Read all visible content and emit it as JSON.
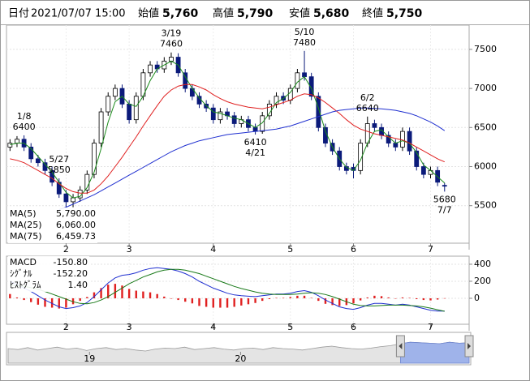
{
  "header": {
    "date_label": "日付",
    "date": "2021/07/07 15:00",
    "items": [
      {
        "name": "始値",
        "value": 5760,
        "value_label": "5,760",
        "color": "#000000"
      },
      {
        "name": "高値",
        "value": 5790,
        "value_label": "5,790",
        "color": "#d00000"
      },
      {
        "name": "安値",
        "value": 5680,
        "value_label": "5,680",
        "color": "#007000"
      },
      {
        "name": "終値",
        "value": 5750,
        "value_label": "5,750",
        "color": "#000000"
      }
    ]
  },
  "chart_data": [
    {
      "type": "candlestick",
      "xlim": [
        -0.5,
        65.5
      ],
      "ylim": [
        5020,
        7810
      ],
      "xticks": [
        {
          "value": 8,
          "label": "2"
        },
        {
          "value": 17,
          "label": "3"
        },
        {
          "value": 29,
          "label": "4"
        },
        {
          "value": 40,
          "label": "5"
        },
        {
          "value": 49,
          "label": "6"
        },
        {
          "value": 60,
          "label": "7"
        }
      ],
      "yticks": [
        5500,
        6000,
        6500,
        7000,
        7500
      ],
      "grid": true,
      "up_color": "#ffffff",
      "down_color": "#0b1a7a",
      "open": [
        6250,
        6300,
        6350,
        6250,
        6100,
        6050,
        5950,
        5800,
        5650,
        5550,
        5600,
        5700,
        5900,
        6300,
        6700,
        6900,
        7000,
        6800,
        6600,
        6900,
        7200,
        7300,
        7250,
        7350,
        7400,
        7200,
        7000,
        6900,
        6800,
        6750,
        6600,
        6700,
        6650,
        6550,
        6600,
        6500,
        6450,
        6650,
        6800,
        6900,
        6850,
        7000,
        7200,
        7150,
        6900,
        6500,
        6300,
        6200,
        6000,
        5990,
        5950,
        6300,
        6550,
        6500,
        6400,
        6300,
        6250,
        6450,
        6200,
        6000,
        5900,
        5950,
        5760
      ],
      "high": [
        6350,
        6390,
        6400,
        6300,
        6150,
        6100,
        6000,
        5850,
        5700,
        5650,
        5750,
        5950,
        6350,
        6750,
        6950,
        7050,
        7050,
        6850,
        6950,
        7250,
        7350,
        7350,
        7400,
        7460,
        7450,
        7250,
        7050,
        6950,
        6850,
        6800,
        6750,
        6750,
        6700,
        6650,
        6650,
        6550,
        6700,
        6850,
        6950,
        6950,
        7050,
        7250,
        7480,
        7200,
        6950,
        6550,
        6350,
        6250,
        6050,
        6040,
        6350,
        6640,
        6600,
        6550,
        6450,
        6350,
        6500,
        6500,
        6250,
        6050,
        6000,
        6000,
        5790
      ],
      "low": [
        6200,
        6250,
        6200,
        6050,
        6000,
        5900,
        5750,
        5600,
        5480,
        5480,
        5550,
        5650,
        5850,
        6250,
        6650,
        6850,
        6750,
        6550,
        6550,
        6850,
        7150,
        7200,
        7200,
        7300,
        7150,
        6950,
        6850,
        6750,
        6700,
        6550,
        6550,
        6600,
        6500,
        6500,
        6450,
        6410,
        6420,
        6600,
        6750,
        6800,
        6800,
        6950,
        7100,
        6850,
        6450,
        6250,
        6150,
        5950,
        5900,
        5850,
        5900,
        6250,
        6450,
        6350,
        6250,
        6200,
        6200,
        6150,
        5950,
        5850,
        5850,
        5750,
        5680
      ],
      "close": [
        6300,
        6350,
        6250,
        6100,
        6050,
        5950,
        5800,
        5650,
        5550,
        5600,
        5700,
        5900,
        6300,
        6700,
        6900,
        7000,
        6800,
        6600,
        6900,
        7200,
        7300,
        7250,
        7350,
        7400,
        7200,
        7000,
        6900,
        6800,
        6750,
        6600,
        6700,
        6650,
        6550,
        6600,
        6500,
        6450,
        6650,
        6800,
        6900,
        6850,
        7000,
        7200,
        7150,
        6900,
        6500,
        6300,
        6200,
        6000,
        5950,
        5950,
        6300,
        6550,
        6500,
        6400,
        6300,
        6250,
        6450,
        6200,
        6000,
        5900,
        5950,
        5800,
        5750
      ],
      "annotations": [
        {
          "date": "1/8",
          "value": 6400
        },
        {
          "date": "3/19",
          "value": 7460
        },
        {
          "date": "4/21",
          "value": 6410
        },
        {
          "date": "5/10",
          "value": 7480
        },
        {
          "date": "5/27",
          "value": 5850
        },
        {
          "date": "6/2",
          "value": 6640
        },
        {
          "date": "7/7",
          "value": 5680
        }
      ],
      "series": [
        {
          "name": "MA(5)",
          "color": "#1a8a1a",
          "legend_value": {
            "value": 5790,
            "label": "5,790.00"
          },
          "values": [
            6280,
            6300,
            6300,
            6230,
            6130,
            6030,
            5930,
            5800,
            5670,
            5600,
            5620,
            5730,
            5930,
            6230,
            6570,
            6830,
            6900,
            6800,
            6770,
            6900,
            7100,
            7250,
            7300,
            7350,
            7300,
            7150,
            7000,
            6880,
            6780,
            6700,
            6680,
            6650,
            6620,
            6600,
            6550,
            6500,
            6560,
            6680,
            6820,
            6870,
            6950,
            7080,
            7150,
            7000,
            6750,
            6450,
            6250,
            6100,
            5990,
            5950,
            6080,
            6300,
            6450,
            6470,
            6380,
            6300,
            6330,
            6300,
            6180,
            6020,
            5950,
            5870,
            5790
          ]
        },
        {
          "name": "MA(25)",
          "color": "#e02020",
          "legend_value": {
            "value": 6060,
            "label": "6,060.00"
          },
          "values": [
            6100,
            6080,
            6050,
            6000,
            5950,
            5900,
            5850,
            5780,
            5720,
            5680,
            5660,
            5660,
            5700,
            5780,
            5880,
            6000,
            6120,
            6250,
            6380,
            6520,
            6650,
            6780,
            6900,
            6980,
            7030,
            7050,
            7050,
            7020,
            6980,
            6920,
            6870,
            6830,
            6800,
            6780,
            6760,
            6750,
            6740,
            6760,
            6790,
            6820,
            6850,
            6900,
            6930,
            6920,
            6880,
            6820,
            6750,
            6680,
            6600,
            6530,
            6480,
            6450,
            6420,
            6400,
            6380,
            6360,
            6340,
            6300,
            6250,
            6200,
            6150,
            6100,
            6060
          ]
        },
        {
          "name": "MA(75)",
          "color": "#2030d0",
          "legend_value": {
            "value": 6459.73,
            "label": "6,459.73"
          },
          "values": [
            null,
            null,
            null,
            null,
            null,
            null,
            null,
            5450,
            5480,
            5520,
            5560,
            5600,
            5640,
            5690,
            5740,
            5790,
            5840,
            5890,
            5940,
            5990,
            6040,
            6090,
            6140,
            6190,
            6230,
            6270,
            6300,
            6330,
            6350,
            6370,
            6390,
            6410,
            6420,
            6430,
            6440,
            6450,
            6460,
            6470,
            6480,
            6500,
            6520,
            6550,
            6580,
            6610,
            6640,
            6670,
            6700,
            6720,
            6730,
            6740,
            6750,
            6750,
            6745,
            6740,
            6730,
            6720,
            6700,
            6680,
            6650,
            6610,
            6570,
            6520,
            6460
          ]
        }
      ]
    },
    {
      "type": "macd",
      "xlim": [
        -0.5,
        65.5
      ],
      "ylim": [
        -305,
        495
      ],
      "xticks": [
        {
          "value": 8,
          "label": "2"
        },
        {
          "value": 17,
          "label": "3"
        },
        {
          "value": 29,
          "label": "4"
        },
        {
          "value": 40,
          "label": "5"
        },
        {
          "value": 49,
          "label": "6"
        },
        {
          "value": 60,
          "label": "7"
        }
      ],
      "yticks": [
        0,
        200,
        400
      ],
      "series": [
        {
          "name": "MACD",
          "color": "#2030d0",
          "legend_value": {
            "value": -150.8,
            "label": "-150.80"
          },
          "values": [
            200,
            160,
            120,
            80,
            30,
            -20,
            -60,
            -100,
            -120,
            -110,
            -90,
            -50,
            20,
            100,
            180,
            240,
            270,
            280,
            300,
            330,
            350,
            360,
            350,
            340,
            320,
            290,
            250,
            200,
            160,
            120,
            90,
            60,
            40,
            30,
            25,
            20,
            30,
            40,
            50,
            50,
            60,
            80,
            90,
            70,
            30,
            -20,
            -60,
            -100,
            -120,
            -130,
            -110,
            -80,
            -60,
            -60,
            -70,
            -80,
            -70,
            -80,
            -100,
            -120,
            -140,
            -150,
            -150.8
          ]
        },
        {
          "name": "ｼｸﾞﾅﾙ",
          "color": "#1a7a1a",
          "legend_value": {
            "value": -152.2,
            "label": "-152.20"
          },
          "values": [
            150,
            150,
            140,
            125,
            105,
            80,
            50,
            20,
            -10,
            -40,
            -60,
            -65,
            -50,
            -20,
            20,
            70,
            120,
            170,
            210,
            250,
            280,
            310,
            330,
            340,
            340,
            330,
            310,
            290,
            260,
            230,
            200,
            170,
            140,
            115,
            95,
            75,
            60,
            50,
            45,
            45,
            45,
            50,
            60,
            65,
            60,
            45,
            20,
            -10,
            -40,
            -70,
            -85,
            -90,
            -90,
            -85,
            -80,
            -80,
            -80,
            -85,
            -90,
            -100,
            -115,
            -135,
            -152.2
          ]
        }
      ],
      "histogram": {
        "name": "ﾋｽﾄｸﾞﾗﾑ",
        "color": "#e02020",
        "legend_value": {
          "value": 1.4,
          "label": "1.40"
        },
        "values": [
          50,
          10,
          -20,
          -45,
          -75,
          -100,
          -110,
          -120,
          -110,
          -70,
          -30,
          15,
          70,
          120,
          160,
          170,
          150,
          110,
          90,
          80,
          70,
          50,
          20,
          0,
          -20,
          -40,
          -60,
          -90,
          -100,
          -110,
          -110,
          -110,
          -100,
          -85,
          -70,
          -55,
          -30,
          -10,
          5,
          5,
          15,
          30,
          30,
          5,
          -30,
          -65,
          -80,
          -90,
          -80,
          -60,
          -25,
          10,
          30,
          25,
          10,
          0,
          10,
          5,
          -10,
          -20,
          -25,
          -15,
          1.4
        ]
      }
    },
    {
      "type": "navigator",
      "xlim": [
        0,
        47
      ],
      "ylim": [
        20,
        80
      ],
      "color": "#999999",
      "selection_color": "#9fb3ea",
      "xticks": [
        {
          "value": 8.3,
          "label": "19"
        },
        {
          "value": 23.7,
          "label": "20"
        }
      ],
      "selection": [
        40,
        47
      ],
      "values": [
        50,
        48,
        52,
        47,
        50,
        53,
        49,
        51,
        46,
        50,
        52,
        48,
        50,
        47,
        45,
        49,
        51,
        50,
        53,
        48,
        50,
        52,
        49,
        47,
        50,
        51,
        48,
        52,
        50,
        49,
        47,
        50,
        53,
        55,
        52,
        50,
        49,
        51,
        54,
        56,
        60,
        63,
        62,
        61,
        60,
        63,
        61,
        62
      ]
    }
  ]
}
